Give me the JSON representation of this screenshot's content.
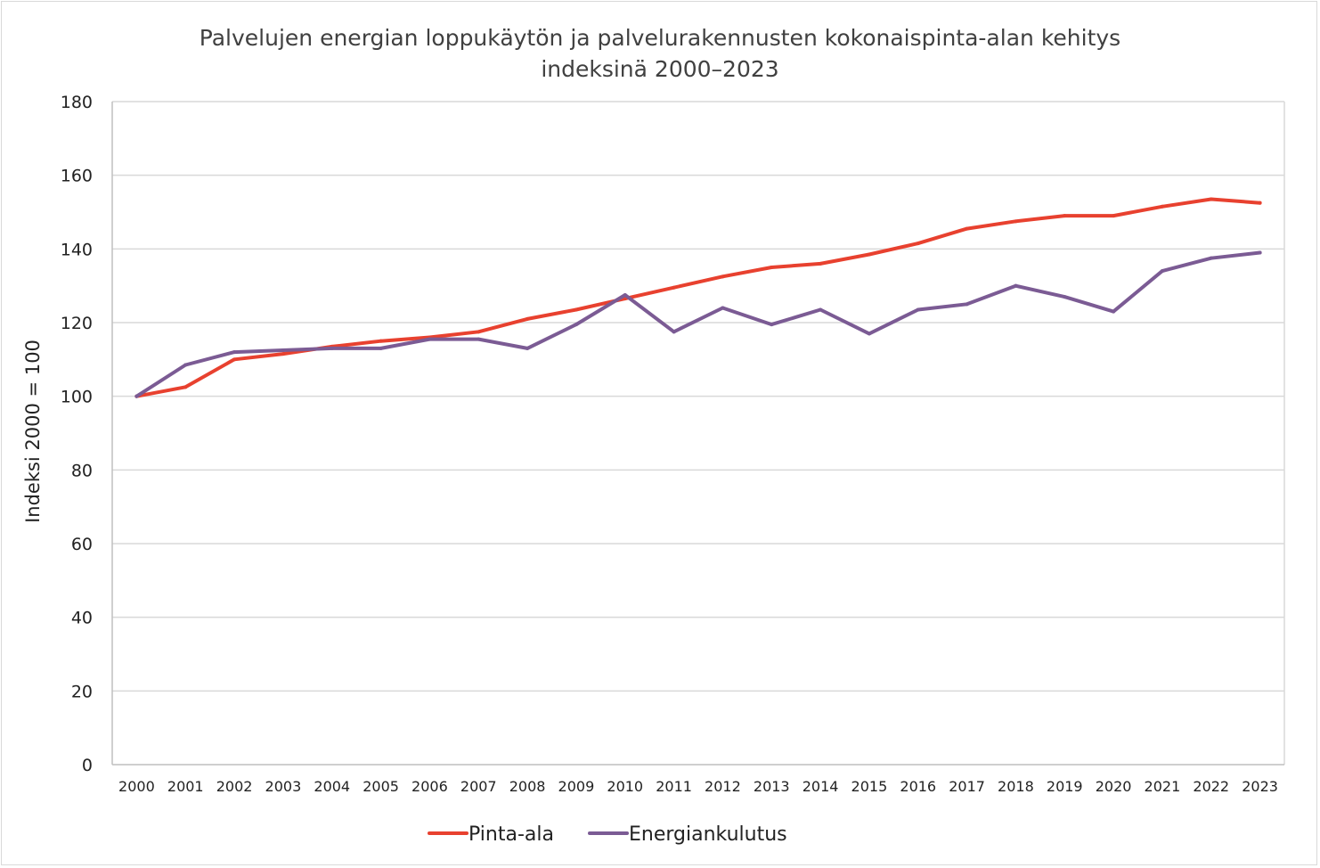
{
  "chart_data": {
    "type": "line",
    "title_lines": [
      "Palvelujen energian loppukäytön ja palvelurakennusten kokonaispinta-alan kehitys",
      "indeksinä 2000–2023"
    ],
    "xlabel": "",
    "ylabel": "Indeksi 2000 = 100",
    "ylim": [
      0,
      180
    ],
    "yticks": [
      "0",
      "20",
      "40",
      "60",
      "80",
      "100",
      "120",
      "140",
      "160",
      "180"
    ],
    "grid": "horizontal",
    "legend_position": "bottom",
    "categories": [
      "2000",
      "2001",
      "2002",
      "2003",
      "2004",
      "2005",
      "2006",
      "2007",
      "2008",
      "2009",
      "2010",
      "2011",
      "2012",
      "2013",
      "2014",
      "2015",
      "2016",
      "2017",
      "2018",
      "2019",
      "2020",
      "2021",
      "2022",
      "2023"
    ],
    "series": [
      {
        "name": "Pinta-ala",
        "color": "#e8412f",
        "values": [
          100,
          102.5,
          110,
          111.5,
          113.5,
          115,
          116,
          117.5,
          121,
          123.5,
          126.5,
          129.5,
          132.5,
          135,
          136,
          138.5,
          141.5,
          145.5,
          147.5,
          149,
          149,
          151.5,
          153.5,
          152.5
        ]
      },
      {
        "name": "Energiankulutus",
        "color": "#7b5b94",
        "values": [
          100,
          108.5,
          112,
          112.5,
          113,
          113,
          115.5,
          115.5,
          113,
          119.5,
          127.5,
          117.5,
          124,
          119.5,
          123.5,
          117,
          123.5,
          125,
          130,
          127,
          123,
          134,
          137.5,
          139
        ]
      }
    ]
  }
}
